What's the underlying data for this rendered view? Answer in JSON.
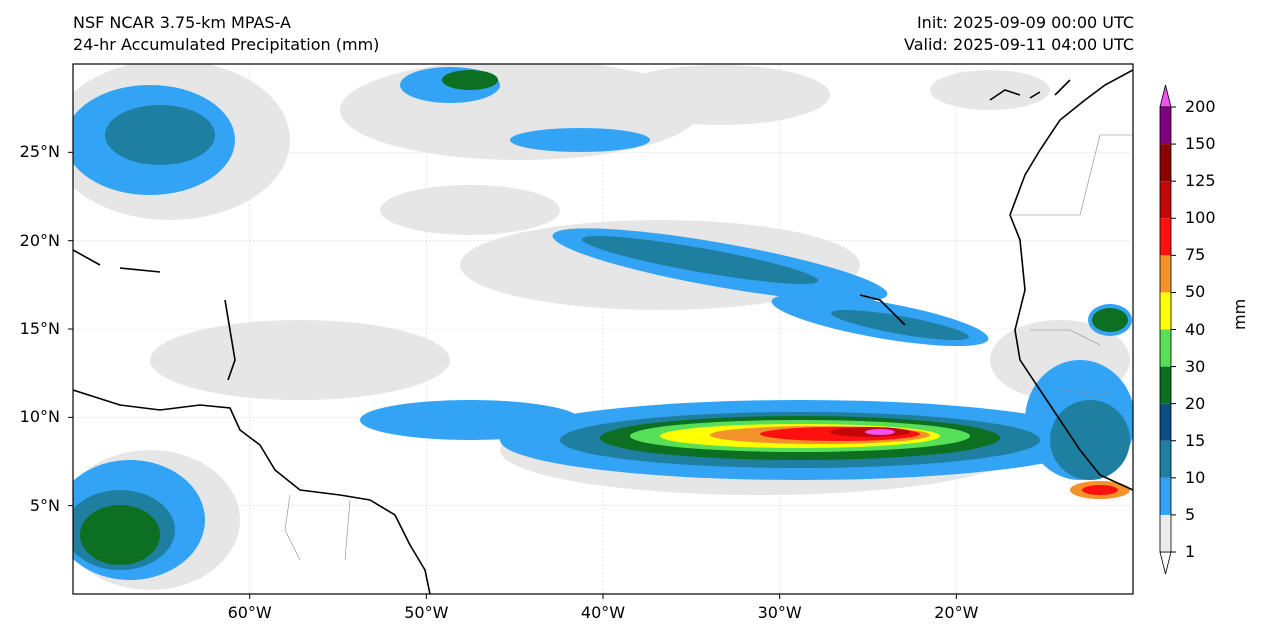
{
  "header": {
    "model": "NSF NCAR 3.75-km MPAS-A",
    "field": "24-hr Accumulated Precipitation (mm)",
    "init": "Init: 2025-09-09 00:00 UTC",
    "valid": "Valid: 2025-09-11 04:00 UTC"
  },
  "map": {
    "lon_range": [
      -70,
      -10
    ],
    "lat_range": [
      0,
      30
    ],
    "lat_ticks": [
      {
        "value": 25,
        "label": "25°N"
      },
      {
        "value": 20,
        "label": "20°N"
      },
      {
        "value": 15,
        "label": "15°N"
      },
      {
        "value": 10,
        "label": "10°N"
      },
      {
        "value": 5,
        "label": "5°N"
      }
    ],
    "lon_ticks": [
      {
        "value": -60,
        "label": "60°W"
      },
      {
        "value": -50,
        "label": "50°W"
      },
      {
        "value": -40,
        "label": "40°W"
      },
      {
        "value": -30,
        "label": "30°W"
      },
      {
        "value": -20,
        "label": "20°W"
      }
    ]
  },
  "colorbar": {
    "unit": "mm",
    "levels": [
      "1",
      "5",
      "10",
      "15",
      "20",
      "30",
      "40",
      "50",
      "75",
      "100",
      "125",
      "150",
      "200"
    ],
    "colors": [
      "#ececec",
      "#33a4f5",
      "#1e7fa0",
      "#0b4d85",
      "#0d6f22",
      "#57e057",
      "#ffff00",
      "#f4922a",
      "#ff1010",
      "#c30707",
      "#8a0303",
      "#800080",
      "#f152f1"
    ]
  }
}
